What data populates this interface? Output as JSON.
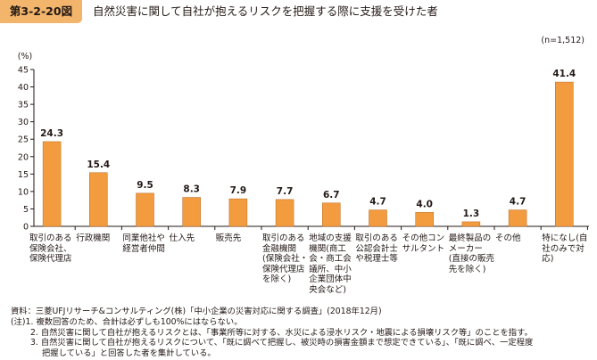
{
  "header": {
    "figure_number": "第3-2-20図",
    "title": "自然災害に関して自社が抱えるリスクを把握する際に支援を受けた者",
    "sample_size": "(n=1,512)",
    "label_color": "#f2b56b"
  },
  "colors": {
    "bar": "#f39c3f",
    "axis": "#231815",
    "text": "#231815"
  },
  "chart_data": {
    "type": "bar",
    "title": "自然災害に関して自社が抱えるリスクを把握する際に支援を受けた者",
    "ylabel": "(%)",
    "xlabel": "",
    "ylim": [
      0,
      45
    ],
    "yticks": [
      0,
      5,
      10,
      15,
      20,
      25,
      30,
      35,
      40,
      45
    ],
    "grid": false,
    "categories": [
      "取引のある\n保険会社、\n保険代理店",
      "行政機関",
      "同業他社や\n経営者仲間",
      "仕入先",
      "販売先",
      "取引のある\n金融機関\n(保険会社・\n保険代理店\nを除く)",
      "地域の支援\n機関(商工\n会・商工会\n議所、中小\n企業団体中\n央会など)",
      "取引のある\n公認会計士\nや税理士等",
      "その他コン\nサルタント",
      "最終製品の\nメーカー\n(直接の販売\n先を除く)",
      "その他",
      "特になし(自\n社のみで対\n応)"
    ],
    "values": [
      24.3,
      15.4,
      9.5,
      8.3,
      7.9,
      7.7,
      6.7,
      4.7,
      4.0,
      1.3,
      4.7,
      41.4
    ],
    "value_labels": [
      "24.3",
      "15.4",
      "9.5",
      "8.3",
      "7.9",
      "7.7",
      "6.7",
      "4.7",
      "4.0",
      "1.3",
      "4.7",
      "41.4"
    ]
  },
  "notes": {
    "source": "資料：三菱UFJリサーチ&コンサルティング(株)「中小企業の災害対応に関する調査」(2018年12月)",
    "note1": "(注)1. 複数回答のため、合計は必ずしも100%にはならない。",
    "note2": "2. 自然災害に関して自社が抱えるリスクとは、「事業所等に対する、水災による浸水リスク・地震による損壊リスク等」のことを指す。",
    "note3a": "3. 自然災害に関して自社が抱えるリスクについて、「既に調べて把握し、被災時の損害金額まで想定できている」、「既に調べ、一定程度",
    "note3b": "把握している」と回答した者を集計している。"
  }
}
